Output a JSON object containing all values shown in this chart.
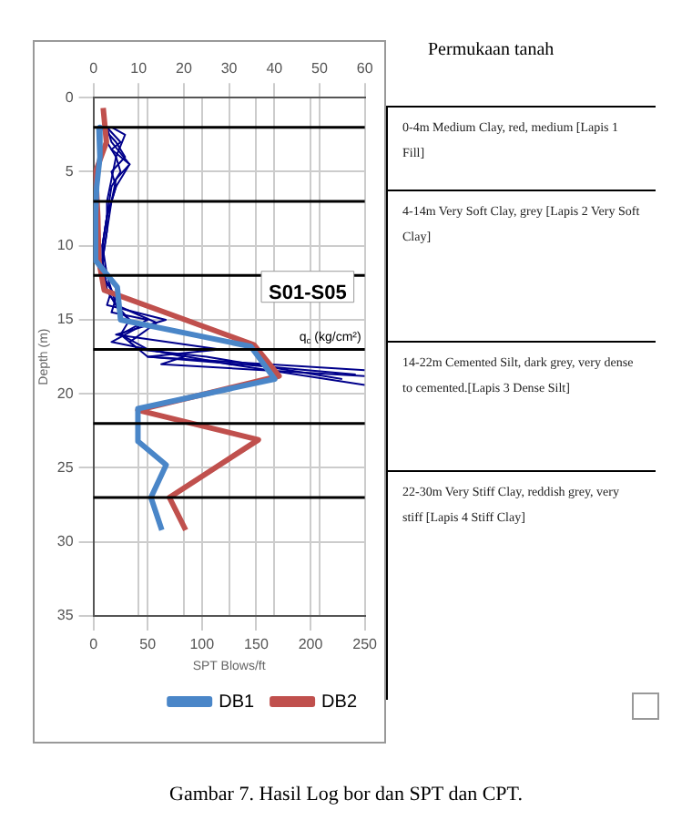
{
  "chart_data": {
    "type": "line",
    "ylabel": "Depth (m)",
    "xlabel": "SPT Blows/ft",
    "x2label": "q$_{c}$ (kg/cm²)",
    "ylim": [
      35,
      0
    ],
    "yticks": [
      0,
      5,
      10,
      15,
      20,
      25,
      30,
      35
    ],
    "xlim": [
      0,
      250
    ],
    "xticks": [
      0,
      50,
      100,
      150,
      200,
      250
    ],
    "x2lim": [
      0,
      60
    ],
    "x2ticks": [
      0,
      10,
      20,
      30,
      40,
      50,
      60
    ],
    "grid": true,
    "legend": "bottom",
    "series": [
      {
        "name": "DB1",
        "color": "#4a86c8",
        "x": [
          5,
          6,
          3,
          2,
          2,
          22,
          25,
          145,
          167,
          41,
          41,
          67,
          53,
          63
        ],
        "values": [
          2,
          4,
          6,
          8,
          11,
          12.8,
          15,
          16.8,
          19,
          21,
          23.2,
          24.8,
          27,
          29.2
        ]
      },
      {
        "name": "DB2",
        "color": "#c0504d",
        "x": [
          9,
          12,
          2,
          4,
          5,
          10,
          148,
          171,
          41,
          152,
          70,
          85
        ],
        "values": [
          0.7,
          3,
          5,
          8,
          11,
          13,
          16.7,
          18.8,
          21.1,
          23.1,
          27,
          29.2
        ]
      },
      {
        "color": "#00008b",
        "axis": "x2",
        "x": [
          2,
          5,
          7,
          4,
          5,
          3,
          2,
          2,
          4,
          3,
          16,
          5,
          28,
          12,
          60
        ],
        "values": [
          2,
          3,
          4,
          5,
          6,
          8,
          10,
          12,
          13,
          14,
          15,
          16,
          17,
          17.5,
          18.4
        ]
      },
      {
        "color": "#00008b",
        "axis": "x2",
        "x": [
          3,
          6,
          4,
          8,
          5,
          4,
          3,
          2,
          3,
          6,
          10,
          4,
          20,
          15,
          60
        ],
        "values": [
          2,
          3,
          3.5,
          4.5,
          5.5,
          7,
          9,
          11,
          13,
          14.5,
          15.5,
          16.5,
          17.5,
          18,
          18.8
        ]
      },
      {
        "color": "#00008b",
        "axis": "x2",
        "x": [
          4,
          7,
          5,
          6,
          4,
          3,
          2,
          2,
          5,
          4,
          12,
          6,
          12,
          30,
          60
        ],
        "values": [
          2,
          2.5,
          4,
          5,
          6,
          8,
          10,
          12,
          13.5,
          14.5,
          15,
          16,
          17,
          18,
          19.4
        ]
      },
      {
        "color": "#00008b",
        "axis": "x2",
        "x": [
          3,
          4,
          8,
          5,
          3,
          2,
          3,
          5,
          8,
          6,
          10,
          25,
          45,
          55
        ],
        "values": [
          2,
          3,
          4.5,
          6,
          8,
          10,
          12,
          14,
          15,
          16,
          17,
          17.5,
          18.5,
          19
        ]
      },
      {
        "color": "#00008b",
        "axis": "x2",
        "x": [
          2,
          3,
          5,
          4,
          3,
          3,
          2,
          3,
          5,
          14,
          8,
          12,
          40,
          58
        ],
        "values": [
          2,
          3,
          4,
          5.5,
          7,
          9,
          11,
          13,
          14,
          15.2,
          16.5,
          17.5,
          18.2,
          18.7
        ]
      }
    ],
    "ref_lines": [
      {
        "axis": "y",
        "value": 2
      },
      {
        "axis": "y",
        "value": 7
      },
      {
        "axis": "y",
        "value": 12
      },
      {
        "axis": "y",
        "value": 17
      },
      {
        "axis": "y",
        "value": 22
      },
      {
        "axis": "y",
        "value": 27
      }
    ],
    "annotations": [
      "S01-S05",
      "Permukaan tanah",
      "0-4m Medium Clay, red, medium [Lapis 1 Fill]",
      "4-14m Very Soft Clay, grey [Lapis 2 Very Soft Clay]",
      "14-22m Cemented Silt, dark grey, very dense to cemented.[Lapis 3 Dense Silt]",
      "22-30m Very Stiff Clay, reddish grey, very stiff [Lapis 4 Stiff Clay]",
      "Gambar 7. Hasil Log bor dan SPT dan CPT."
    ]
  }
}
